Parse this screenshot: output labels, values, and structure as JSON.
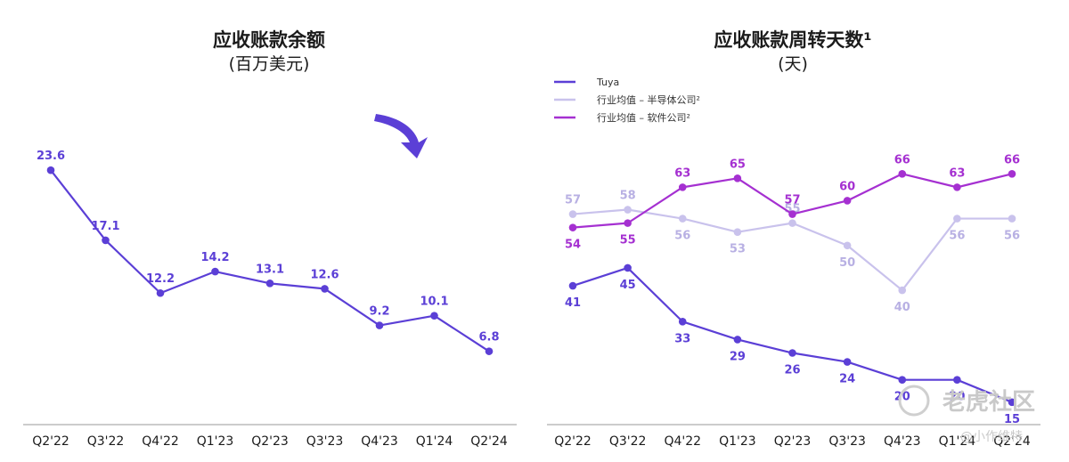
{
  "watermark": {
    "brand": "老虎社区",
    "author": "@小作维特"
  },
  "chart_data": [
    {
      "type": "line",
      "title": "应收账款余额",
      "subtitle": "(百万美元)",
      "categories": [
        "Q2'22",
        "Q3'22",
        "Q4'22",
        "Q1'23",
        "Q2'23",
        "Q3'23",
        "Q4'23",
        "Q1'24",
        "Q2'24"
      ],
      "ylim": [
        0,
        27
      ],
      "grid": false,
      "series": [
        {
          "values": [
            23.6,
            17.1,
            12.2,
            14.2,
            13.1,
            12.6,
            9.2,
            10.1,
            6.8
          ],
          "color": "#5b3fd6"
        }
      ]
    },
    {
      "type": "line",
      "title": "应收账款周转天数¹",
      "subtitle": "(天)",
      "categories": [
        "Q2'22",
        "Q3'22",
        "Q4'22",
        "Q1'23",
        "Q2'23",
        "Q3'23",
        "Q4'23",
        "Q1'24",
        "Q2'24"
      ],
      "ylim": [
        10,
        75
      ],
      "grid": false,
      "legend": "top-left",
      "series": [
        {
          "name": "Tuya",
          "values": [
            41,
            45,
            33,
            29,
            26,
            24,
            20,
            20,
            15
          ],
          "color": "#5b3fd6"
        },
        {
          "name": "行业均值 – 半导体公司²",
          "values": [
            57,
            58,
            56,
            53,
            55,
            50,
            40,
            56,
            56
          ],
          "color": "#c9c2ec"
        },
        {
          "name": "行业均值 – 软件公司²",
          "values": [
            54,
            55,
            63,
            65,
            57,
            60,
            66,
            63,
            66
          ],
          "color": "#a530d1"
        }
      ]
    }
  ]
}
